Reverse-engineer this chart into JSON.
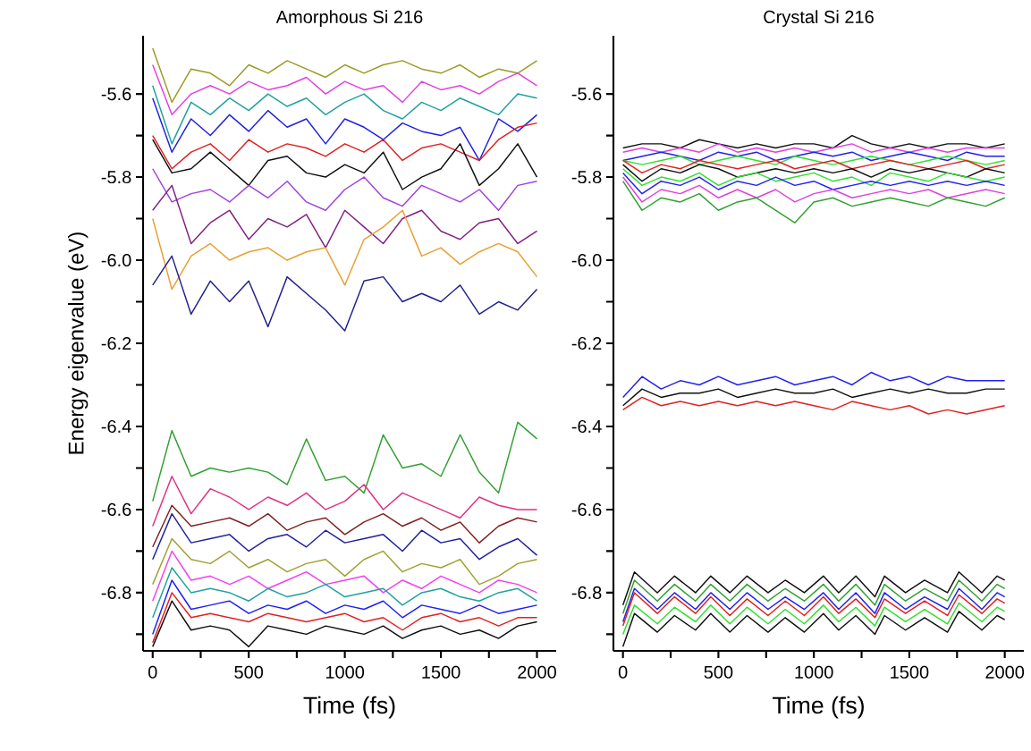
{
  "chart_data": [
    {
      "type": "line",
      "title": "Amorphous  Si 216",
      "xlabel": "Time (fs)",
      "ylabel": "Energy eigenvalue (eV)",
      "x": [
        0,
        100,
        200,
        300,
        400,
        500,
        600,
        700,
        800,
        900,
        1000,
        1100,
        1200,
        1300,
        1400,
        1500,
        1600,
        1700,
        1800,
        1900,
        2000
      ],
      "xlim": [
        -50,
        2100
      ],
      "ylim": [
        -6.94,
        -5.46
      ],
      "xticks": [
        0,
        {
          "value": 250,
          "label": null
        },
        500,
        {
          "value": 750,
          "label": null
        },
        1000,
        {
          "value": 1250,
          "label": null
        },
        1500,
        {
          "value": 1750,
          "label": null
        },
        2000
      ],
      "yticks": [
        -5.6,
        {
          "value": -5.7,
          "label": null
        },
        -5.8,
        {
          "value": -5.9,
          "label": null
        },
        {
          "value": -6,
          "label": "-6.0"
        },
        {
          "value": -6.1,
          "label": null
        },
        -6.2,
        {
          "value": -6.3,
          "label": null
        },
        -6.4,
        {
          "value": -6.5,
          "label": null
        },
        -6.6,
        {
          "value": -6.7,
          "label": null
        },
        -6.8,
        {
          "value": -6.9,
          "label": null
        }
      ],
      "series": [
        {
          "color": "#9a9a20",
          "values": [
            -5.49,
            -5.62,
            -5.54,
            -5.55,
            -5.58,
            -5.53,
            -5.55,
            -5.52,
            -5.54,
            -5.56,
            -5.53,
            -5.55,
            -5.53,
            -5.52,
            -5.54,
            -5.55,
            -5.53,
            -5.56,
            -5.54,
            -5.55,
            -5.52
          ]
        },
        {
          "color": "#e040e0",
          "values": [
            -5.53,
            -5.65,
            -5.6,
            -5.58,
            -5.6,
            -5.57,
            -5.59,
            -5.58,
            -5.56,
            -5.6,
            -5.57,
            -5.59,
            -5.58,
            -5.62,
            -5.57,
            -5.59,
            -5.58,
            -5.6,
            -5.57,
            -5.55,
            -5.58
          ]
        },
        {
          "color": "#20a0a0",
          "values": [
            -5.58,
            -5.72,
            -5.62,
            -5.65,
            -5.61,
            -5.64,
            -5.6,
            -5.63,
            -5.61,
            -5.65,
            -5.62,
            -5.6,
            -5.64,
            -5.66,
            -5.62,
            -5.64,
            -5.61,
            -5.63,
            -5.65,
            -5.6,
            -5.61
          ]
        },
        {
          "color": "#2020e0",
          "values": [
            -5.61,
            -5.74,
            -5.66,
            -5.7,
            -5.65,
            -5.69,
            -5.64,
            -5.68,
            -5.66,
            -5.72,
            -5.66,
            -5.68,
            -5.71,
            -5.67,
            -5.69,
            -5.7,
            -5.68,
            -5.76,
            -5.66,
            -5.69,
            -5.65
          ]
        },
        {
          "color": "#e02020",
          "values": [
            -5.7,
            -5.78,
            -5.74,
            -5.72,
            -5.76,
            -5.71,
            -5.74,
            -5.72,
            -5.73,
            -5.75,
            -5.72,
            -5.74,
            -5.71,
            -5.76,
            -5.73,
            -5.72,
            -5.74,
            -5.76,
            -5.71,
            -5.68,
            -5.67
          ]
        },
        {
          "color": "#101010",
          "values": [
            -5.71,
            -5.79,
            -5.78,
            -5.74,
            -5.78,
            -5.82,
            -5.76,
            -5.75,
            -5.79,
            -5.8,
            -5.77,
            -5.79,
            -5.74,
            -5.83,
            -5.8,
            -5.78,
            -5.72,
            -5.82,
            -5.78,
            -5.72,
            -5.8
          ]
        },
        {
          "color": "#a040e0",
          "values": [
            -5.78,
            -5.86,
            -5.84,
            -5.83,
            -5.86,
            -5.82,
            -5.85,
            -5.81,
            -5.86,
            -5.88,
            -5.83,
            -5.8,
            -5.85,
            -5.87,
            -5.82,
            -5.84,
            -5.86,
            -5.83,
            -5.88,
            -5.82,
            -5.81
          ]
        },
        {
          "color": "#802080",
          "values": [
            -5.88,
            -5.82,
            -5.96,
            -5.91,
            -5.88,
            -5.95,
            -5.9,
            -5.92,
            -5.89,
            -5.97,
            -5.88,
            -5.92,
            -5.96,
            -5.9,
            -5.88,
            -5.93,
            -5.95,
            -5.91,
            -5.9,
            -5.96,
            -5.93
          ]
        },
        {
          "color": "#e8a030",
          "values": [
            -5.9,
            -6.07,
            -5.99,
            -5.96,
            -6.0,
            -5.98,
            -5.97,
            -6.0,
            -5.98,
            -5.97,
            -6.06,
            -5.95,
            -5.92,
            -5.88,
            -5.99,
            -5.97,
            -6.01,
            -5.98,
            -5.96,
            -5.98,
            -6.04
          ]
        },
        {
          "color": "#202090",
          "values": [
            -6.06,
            -5.99,
            -6.13,
            -6.05,
            -6.1,
            -6.05,
            -6.16,
            -6.04,
            -6.08,
            -6.12,
            -6.17,
            -6.05,
            -6.04,
            -6.1,
            -6.08,
            -6.1,
            -6.06,
            -6.13,
            -6.1,
            -6.12,
            -6.07
          ]
        },
        {
          "color": "#30a030",
          "values": [
            -6.58,
            -6.41,
            -6.52,
            -6.5,
            -6.51,
            -6.5,
            -6.51,
            -6.54,
            -6.43,
            -6.53,
            -6.52,
            -6.56,
            -6.42,
            -6.5,
            -6.49,
            -6.52,
            -6.42,
            -6.51,
            -6.56,
            -6.39,
            -6.43
          ]
        },
        {
          "color": "#e03080",
          "values": [
            -6.64,
            -6.52,
            -6.61,
            -6.55,
            -6.57,
            -6.6,
            -6.57,
            -6.59,
            -6.56,
            -6.6,
            -6.58,
            -6.54,
            -6.6,
            -6.56,
            -6.58,
            -6.6,
            -6.62,
            -6.57,
            -6.59,
            -6.6,
            -6.6
          ]
        },
        {
          "color": "#802020",
          "values": [
            -6.69,
            -6.59,
            -6.64,
            -6.63,
            -6.62,
            -6.64,
            -6.61,
            -6.65,
            -6.63,
            -6.62,
            -6.66,
            -6.63,
            -6.61,
            -6.64,
            -6.62,
            -6.65,
            -6.63,
            -6.68,
            -6.64,
            -6.62,
            -6.63
          ]
        },
        {
          "color": "#2020a0",
          "values": [
            -6.72,
            -6.61,
            -6.68,
            -6.67,
            -6.66,
            -6.7,
            -6.67,
            -6.66,
            -6.69,
            -6.65,
            -6.68,
            -6.67,
            -6.66,
            -6.7,
            -6.65,
            -6.68,
            -6.67,
            -6.72,
            -6.69,
            -6.67,
            -6.71
          ]
        },
        {
          "color": "#a0a030",
          "values": [
            -6.78,
            -6.67,
            -6.72,
            -6.73,
            -6.7,
            -6.74,
            -6.72,
            -6.75,
            -6.73,
            -6.72,
            -6.76,
            -6.72,
            -6.7,
            -6.75,
            -6.73,
            -6.74,
            -6.72,
            -6.78,
            -6.76,
            -6.73,
            -6.72
          ]
        },
        {
          "color": "#f040f0",
          "values": [
            -6.82,
            -6.7,
            -6.77,
            -6.76,
            -6.78,
            -6.76,
            -6.79,
            -6.77,
            -6.75,
            -6.78,
            -6.77,
            -6.76,
            -6.8,
            -6.77,
            -6.79,
            -6.76,
            -6.78,
            -6.8,
            -6.77,
            -6.78,
            -6.8
          ]
        },
        {
          "color": "#20a0a0",
          "values": [
            -6.86,
            -6.74,
            -6.8,
            -6.79,
            -6.8,
            -6.82,
            -6.79,
            -6.81,
            -6.8,
            -6.78,
            -6.81,
            -6.8,
            -6.79,
            -6.83,
            -6.8,
            -6.79,
            -6.81,
            -6.82,
            -6.8,
            -6.79,
            -6.82
          ]
        },
        {
          "color": "#2020f0",
          "values": [
            -6.9,
            -6.77,
            -6.84,
            -6.83,
            -6.82,
            -6.85,
            -6.83,
            -6.84,
            -6.82,
            -6.85,
            -6.83,
            -6.84,
            -6.82,
            -6.86,
            -6.83,
            -6.84,
            -6.85,
            -6.83,
            -6.85,
            -6.84,
            -6.83
          ]
        },
        {
          "color": "#e02020",
          "values": [
            -6.92,
            -6.8,
            -6.86,
            -6.85,
            -6.86,
            -6.87,
            -6.85,
            -6.86,
            -6.87,
            -6.86,
            -6.85,
            -6.87,
            -6.86,
            -6.89,
            -6.86,
            -6.85,
            -6.87,
            -6.86,
            -6.88,
            -6.86,
            -6.86
          ]
        },
        {
          "color": "#101010",
          "values": [
            -6.93,
            -6.82,
            -6.89,
            -6.88,
            -6.89,
            -6.93,
            -6.88,
            -6.89,
            -6.9,
            -6.88,
            -6.89,
            -6.9,
            -6.88,
            -6.91,
            -6.89,
            -6.88,
            -6.9,
            -6.89,
            -6.91,
            -6.88,
            -6.87
          ]
        }
      ]
    },
    {
      "type": "line",
      "title": "Crystal Si 216",
      "xlabel": "Time (fs)",
      "x": [
        0,
        100,
        200,
        300,
        400,
        500,
        600,
        700,
        800,
        900,
        1000,
        1100,
        1200,
        1300,
        1400,
        1500,
        1600,
        1700,
        1800,
        1900,
        2000
      ],
      "xlim": [
        -50,
        2100
      ],
      "ylim": [
        -6.94,
        -5.46
      ],
      "xticks": [
        0,
        {
          "value": 250,
          "label": null
        },
        500,
        {
          "value": 750,
          "label": null
        },
        1000,
        {
          "value": 1250,
          "label": null
        },
        1500,
        {
          "value": 1750,
          "label": null
        },
        2000
      ],
      "yticks": [
        -5.6,
        {
          "value": -5.7,
          "label": null
        },
        -5.8,
        {
          "value": -5.9,
          "label": null
        },
        {
          "value": -6,
          "label": "-6.0"
        },
        {
          "value": -6.1,
          "label": null
        },
        -6.2,
        {
          "value": -6.3,
          "label": null
        },
        -6.4,
        {
          "value": -6.5,
          "label": null
        },
        -6.6,
        {
          "value": -6.7,
          "label": null
        },
        -6.8,
        {
          "value": -6.9,
          "label": null
        }
      ],
      "series": [
        {
          "color": "#101010",
          "values": [
            -5.73,
            -5.72,
            -5.72,
            -5.73,
            -5.71,
            -5.72,
            -5.73,
            -5.72,
            -5.73,
            -5.72,
            -5.72,
            -5.73,
            -5.7,
            -5.72,
            -5.73,
            -5.72,
            -5.73,
            -5.72,
            -5.72,
            -5.73,
            -5.72
          ]
        },
        {
          "color": "#e040e0",
          "values": [
            -5.74,
            -5.73,
            -5.74,
            -5.73,
            -5.74,
            -5.72,
            -5.74,
            -5.73,
            -5.74,
            -5.73,
            -5.74,
            -5.73,
            -5.72,
            -5.74,
            -5.73,
            -5.74,
            -5.73,
            -5.74,
            -5.73,
            -5.73,
            -5.73
          ]
        },
        {
          "color": "#2020f0",
          "values": [
            -5.76,
            -5.75,
            -5.74,
            -5.75,
            -5.76,
            -5.74,
            -5.75,
            -5.74,
            -5.76,
            -5.75,
            -5.74,
            -5.75,
            -5.74,
            -5.76,
            -5.75,
            -5.74,
            -5.75,
            -5.76,
            -5.74,
            -5.75,
            -5.75
          ]
        },
        {
          "color": "#30e030",
          "values": [
            -5.76,
            -5.77,
            -5.76,
            -5.75,
            -5.77,
            -5.76,
            -5.75,
            -5.76,
            -5.77,
            -5.75,
            -5.76,
            -5.77,
            -5.76,
            -5.75,
            -5.76,
            -5.77,
            -5.76,
            -5.75,
            -5.76,
            -5.77,
            -5.76
          ]
        },
        {
          "color": "#e02020",
          "values": [
            -5.76,
            -5.79,
            -5.77,
            -5.78,
            -5.76,
            -5.77,
            -5.78,
            -5.77,
            -5.76,
            -5.78,
            -5.77,
            -5.76,
            -5.78,
            -5.77,
            -5.76,
            -5.77,
            -5.78,
            -5.77,
            -5.76,
            -5.78,
            -5.77
          ]
        },
        {
          "color": "#101010",
          "values": [
            -5.77,
            -5.81,
            -5.78,
            -5.79,
            -5.77,
            -5.78,
            -5.8,
            -5.79,
            -5.78,
            -5.79,
            -5.78,
            -5.79,
            -5.78,
            -5.8,
            -5.78,
            -5.79,
            -5.78,
            -5.79,
            -5.8,
            -5.78,
            -5.79
          ]
        },
        {
          "color": "#30e030",
          "values": [
            -5.78,
            -5.82,
            -5.8,
            -5.81,
            -5.79,
            -5.82,
            -5.8,
            -5.79,
            -5.81,
            -5.8,
            -5.79,
            -5.81,
            -5.8,
            -5.82,
            -5.79,
            -5.8,
            -5.81,
            -5.79,
            -5.8,
            -5.81,
            -5.8
          ]
        },
        {
          "color": "#2020f0",
          "values": [
            -5.79,
            -5.84,
            -5.81,
            -5.82,
            -5.8,
            -5.83,
            -5.81,
            -5.82,
            -5.8,
            -5.82,
            -5.81,
            -5.83,
            -5.82,
            -5.81,
            -5.82,
            -5.81,
            -5.82,
            -5.81,
            -5.82,
            -5.81,
            -5.82
          ]
        },
        {
          "color": "#e040e0",
          "values": [
            -5.8,
            -5.86,
            -5.83,
            -5.84,
            -5.82,
            -5.85,
            -5.83,
            -5.85,
            -5.83,
            -5.86,
            -5.84,
            -5.83,
            -5.85,
            -5.84,
            -5.83,
            -5.84,
            -5.83,
            -5.85,
            -5.84,
            -5.83,
            -5.84
          ]
        },
        {
          "color": "#30a030",
          "values": [
            -5.81,
            -5.88,
            -5.85,
            -5.86,
            -5.84,
            -5.88,
            -5.86,
            -5.85,
            -5.88,
            -5.91,
            -5.86,
            -5.85,
            -5.87,
            -5.86,
            -5.85,
            -5.86,
            -5.87,
            -5.85,
            -5.86,
            -5.87,
            -5.85
          ]
        },
        {
          "color": "#2020f0",
          "values": [
            -6.33,
            -6.28,
            -6.31,
            -6.29,
            -6.3,
            -6.28,
            -6.3,
            -6.29,
            -6.28,
            -6.3,
            -6.29,
            -6.28,
            -6.3,
            -6.27,
            -6.29,
            -6.28,
            -6.3,
            -6.28,
            -6.29,
            -6.29,
            -6.29
          ]
        },
        {
          "color": "#101010",
          "values": [
            -6.35,
            -6.31,
            -6.33,
            -6.32,
            -6.32,
            -6.31,
            -6.33,
            -6.32,
            -6.31,
            -6.32,
            -6.32,
            -6.31,
            -6.33,
            -6.32,
            -6.31,
            -6.32,
            -6.31,
            -6.32,
            -6.32,
            -6.31,
            -6.31
          ]
        },
        {
          "color": "#e02020",
          "values": [
            -6.36,
            -6.33,
            -6.35,
            -6.34,
            -6.35,
            -6.34,
            -6.35,
            -6.34,
            -6.35,
            -6.34,
            -6.35,
            -6.36,
            -6.34,
            -6.35,
            -6.36,
            -6.35,
            -6.37,
            -6.36,
            -6.37,
            -6.36,
            -6.35
          ]
        },
        {
          "color": "#101010",
          "x": [
            0,
            60,
            180,
            270,
            380,
            460,
            560,
            650,
            760,
            850,
            950,
            1050,
            1130,
            1220,
            1320,
            1370,
            1480,
            1580,
            1700,
            1760,
            1880,
            1960,
            2000
          ],
          "values": [
            -6.83,
            -6.75,
            -6.8,
            -6.76,
            -6.8,
            -6.76,
            -6.8,
            -6.76,
            -6.8,
            -6.77,
            -6.8,
            -6.76,
            -6.8,
            -6.76,
            -6.81,
            -6.76,
            -6.8,
            -6.77,
            -6.8,
            -6.75,
            -6.8,
            -6.76,
            -6.77
          ]
        },
        {
          "color": "#30a030",
          "x": [
            0,
            60,
            180,
            270,
            380,
            460,
            560,
            650,
            760,
            850,
            950,
            1050,
            1130,
            1220,
            1320,
            1370,
            1480,
            1580,
            1700,
            1760,
            1880,
            1960,
            2000
          ],
          "values": [
            -6.85,
            -6.77,
            -6.82,
            -6.78,
            -6.82,
            -6.78,
            -6.82,
            -6.78,
            -6.82,
            -6.79,
            -6.82,
            -6.78,
            -6.82,
            -6.78,
            -6.83,
            -6.78,
            -6.82,
            -6.79,
            -6.82,
            -6.77,
            -6.82,
            -6.78,
            -6.79
          ]
        },
        {
          "color": "#2020f0",
          "x": [
            0,
            60,
            180,
            270,
            380,
            460,
            560,
            650,
            760,
            850,
            950,
            1050,
            1130,
            1220,
            1320,
            1370,
            1480,
            1580,
            1700,
            1760,
            1880,
            1960,
            2000
          ],
          "values": [
            -6.87,
            -6.79,
            -6.84,
            -6.8,
            -6.84,
            -6.8,
            -6.84,
            -6.8,
            -6.84,
            -6.81,
            -6.84,
            -6.8,
            -6.84,
            -6.8,
            -6.85,
            -6.8,
            -6.84,
            -6.81,
            -6.84,
            -6.79,
            -6.84,
            -6.8,
            -6.81
          ]
        },
        {
          "color": "#e02020",
          "x": [
            0,
            60,
            180,
            270,
            380,
            460,
            560,
            650,
            760,
            850,
            950,
            1050,
            1130,
            1220,
            1320,
            1370,
            1480,
            1580,
            1700,
            1760,
            1880,
            1960,
            2000
          ],
          "values": [
            -6.88,
            -6.8,
            -6.85,
            -6.81,
            -6.85,
            -6.81,
            -6.855,
            -6.815,
            -6.855,
            -6.82,
            -6.855,
            -6.81,
            -6.85,
            -6.815,
            -6.86,
            -6.815,
            -6.85,
            -6.82,
            -6.855,
            -6.805,
            -6.85,
            -6.815,
            -6.825
          ]
        },
        {
          "color": "#30e030",
          "x": [
            0,
            60,
            180,
            270,
            380,
            460,
            560,
            650,
            760,
            850,
            950,
            1050,
            1130,
            1220,
            1320,
            1370,
            1480,
            1580,
            1700,
            1760,
            1880,
            1960,
            2000
          ],
          "values": [
            -6.9,
            -6.83,
            -6.875,
            -6.835,
            -6.87,
            -6.83,
            -6.875,
            -6.835,
            -6.875,
            -6.84,
            -6.875,
            -6.83,
            -6.87,
            -6.835,
            -6.88,
            -6.835,
            -6.87,
            -6.84,
            -6.875,
            -6.825,
            -6.87,
            -6.835,
            -6.845
          ]
        },
        {
          "color": "#101010",
          "x": [
            0,
            60,
            180,
            270,
            380,
            460,
            560,
            650,
            760,
            850,
            950,
            1050,
            1130,
            1220,
            1320,
            1370,
            1480,
            1580,
            1700,
            1760,
            1880,
            1960,
            2000
          ],
          "values": [
            -6.93,
            -6.85,
            -6.895,
            -6.855,
            -6.89,
            -6.85,
            -6.895,
            -6.855,
            -6.895,
            -6.86,
            -6.895,
            -6.85,
            -6.89,
            -6.855,
            -6.9,
            -6.855,
            -6.89,
            -6.86,
            -6.895,
            -6.845,
            -6.89,
            -6.855,
            -6.865
          ]
        }
      ]
    }
  ]
}
